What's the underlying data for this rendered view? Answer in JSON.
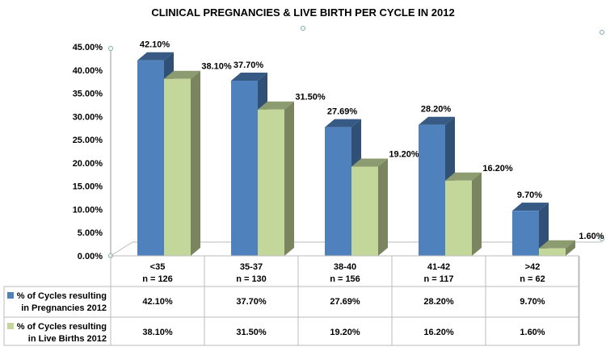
{
  "chart_data": {
    "type": "bar",
    "title": "CLINICAL PREGNANCIES & LIVE BIRTH PER CYCLE IN 2012",
    "categories": [
      "<35",
      "35-37",
      "38-40",
      "41-42",
      ">42"
    ],
    "category_counts": [
      "n = 126",
      "n = 130",
      "n = 156",
      "n = 117",
      "n = 62"
    ],
    "ylim": [
      0,
      45
    ],
    "yticks": [
      "0.00%",
      "5.00%",
      "10.00%",
      "15.00%",
      "20.00%",
      "25.00%",
      "30.00%",
      "35.00%",
      "40.00%",
      "45.00%"
    ],
    "series": [
      {
        "name": "% of Cycles resulting in Pregnancies 2012",
        "name_lines": [
          "% of Cycles resulting",
          "in Pregnancies 2012"
        ],
        "values": [
          42.1,
          37.7,
          27.69,
          28.2,
          9.7
        ],
        "labels": [
          "42.10%",
          "37.70%",
          "27.69%",
          "28.20%",
          "9.70%"
        ],
        "color": "#4f81bd"
      },
      {
        "name": "% of Cycles resulting in Live Births 2012",
        "name_lines": [
          "% of Cycles resulting",
          "in Live Births 2012"
        ],
        "values": [
          38.1,
          31.5,
          19.2,
          16.2,
          1.6
        ],
        "labels": [
          "38.10%",
          "31.50%",
          "19.20%",
          "16.20%",
          "1.60%"
        ],
        "color": "#c4d79b"
      }
    ],
    "style": "3d-clustered-column with data table",
    "grid": false
  }
}
